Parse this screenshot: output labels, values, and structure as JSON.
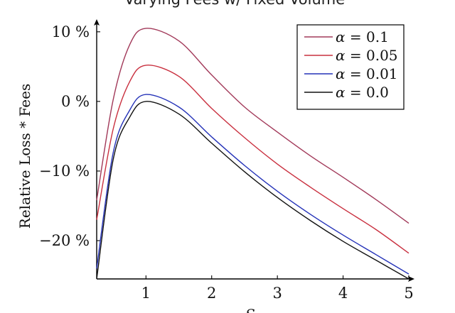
{
  "chart_data": {
    "type": "line",
    "title": "Varying Fees w/ Fixed Volume",
    "xlabel": "S",
    "ylabel": "Relative Loss * Fees",
    "xlim": [
      0.25,
      5
    ],
    "ylim": [
      -25.5,
      11
    ],
    "x_ticks": [
      1,
      2,
      3,
      4,
      5
    ],
    "y_ticks": [
      10,
      0,
      -10,
      -20
    ],
    "x_tick_labels": [
      "1",
      "2",
      "3",
      "4",
      "5"
    ],
    "y_tick_labels": [
      "10 %",
      "0 %",
      "−10 %",
      "−20 %"
    ],
    "grid": false,
    "legend_position": "top-right",
    "series": [
      {
        "name": "α = 0.1",
        "legend_value": "0.1",
        "color": "#a23a5a",
        "x": [
          0.25,
          0.5,
          0.75,
          1.0,
          1.5,
          2.0,
          2.5,
          3.0,
          3.5,
          4.0,
          4.5,
          5.0
        ],
        "values": [
          -14.2,
          0.2,
          8.1,
          10.5,
          8.7,
          3.8,
          -0.8,
          -4.4,
          -7.8,
          -10.9,
          -14.1,
          -17.5
        ]
      },
      {
        "name": "α = 0.05",
        "legend_value": "0.05",
        "color": "#c9303f",
        "x": [
          0.25,
          0.5,
          0.75,
          1.0,
          1.5,
          2.0,
          2.5,
          3.0,
          3.5,
          4.0,
          4.5,
          5.0
        ],
        "values": [
          -17.0,
          -4.0,
          2.8,
          5.2,
          3.6,
          -1.0,
          -5.2,
          -9.0,
          -12.3,
          -15.4,
          -18.4,
          -21.8
        ]
      },
      {
        "name": "α = 0.01",
        "legend_value": "0.01",
        "color": "#2432b8",
        "x": [
          0.25,
          0.5,
          0.75,
          1.0,
          1.5,
          2.0,
          2.5,
          3.0,
          3.5,
          4.0,
          4.5,
          5.0
        ],
        "values": [
          -24.0,
          -7.4,
          -1.3,
          1.0,
          -0.8,
          -5.1,
          -9.2,
          -12.9,
          -16.2,
          -19.2,
          -22.0,
          -24.8
        ]
      },
      {
        "name": "α = 0.0",
        "legend_value": "0.0",
        "color": "#111111",
        "x": [
          0.25,
          0.5,
          0.75,
          1.0,
          1.5,
          2.0,
          2.5,
          3.0,
          3.5,
          4.0,
          4.5,
          5.0
        ],
        "values": [
          -25.5,
          -8.4,
          -2.3,
          0.0,
          -1.8,
          -6.0,
          -10.1,
          -13.8,
          -17.1,
          -20.1,
          -22.8,
          -25.5
        ]
      }
    ]
  }
}
